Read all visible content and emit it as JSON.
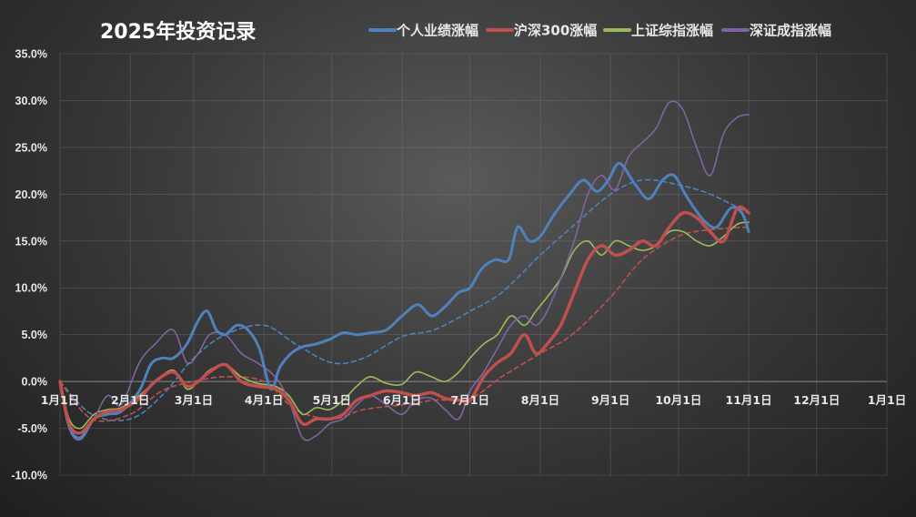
{
  "chart_data": {
    "type": "line",
    "title": "2025年投资记录",
    "ylim": [
      -0.1,
      0.35
    ],
    "yticks": [
      -0.1,
      -0.05,
      0.0,
      0.05,
      0.1,
      0.15,
      0.2,
      0.25,
      0.3,
      0.35
    ],
    "ytick_labels": [
      "-10.0%",
      "-5.0%",
      "0.0%",
      "5.0%",
      "10.0%",
      "15.0%",
      "20.0%",
      "25.0%",
      "30.0%",
      "35.0%"
    ],
    "xlim": [
      "2025-01-01",
      "2026-01-01"
    ],
    "xticks": [
      "2025-01-01",
      "2025-02-01",
      "2025-03-01",
      "2025-04-01",
      "2025-05-01",
      "2025-06-01",
      "2025-07-01",
      "2025-08-01",
      "2025-09-01",
      "2025-10-01",
      "2025-11-01",
      "2025-12-01",
      "2026-01-01"
    ],
    "xtick_labels": [
      "1月1日",
      "2月1日",
      "3月1日",
      "4月1日",
      "5月1日",
      "6月1日",
      "7月1日",
      "8月1日",
      "9月1日",
      "10月1日",
      "11月1日",
      "12月1日",
      "1月1日"
    ],
    "legend_position": "top",
    "grid": true,
    "series": [
      {
        "name": "个人业绩涨幅",
        "color": "#4f81bd",
        "width": 3,
        "x": [
          "2025-01-01",
          "2025-01-05",
          "2025-01-10",
          "2025-01-16",
          "2025-01-22",
          "2025-01-28",
          "2025-02-05",
          "2025-02-10",
          "2025-02-15",
          "2025-02-20",
          "2025-02-26",
          "2025-03-03",
          "2025-03-07",
          "2025-03-11",
          "2025-03-15",
          "2025-03-20",
          "2025-03-25",
          "2025-03-30",
          "2025-04-04",
          "2025-04-08",
          "2025-04-13",
          "2025-04-18",
          "2025-04-24",
          "2025-04-30",
          "2025-05-06",
          "2025-05-12",
          "2025-05-18",
          "2025-05-25",
          "2025-06-01",
          "2025-06-08",
          "2025-06-14",
          "2025-06-20",
          "2025-06-26",
          "2025-07-01",
          "2025-07-06",
          "2025-07-12",
          "2025-07-18",
          "2025-07-22",
          "2025-07-27",
          "2025-08-01",
          "2025-08-07",
          "2025-08-14",
          "2025-08-20",
          "2025-08-26",
          "2025-08-31",
          "2025-09-05",
          "2025-09-12",
          "2025-09-18",
          "2025-09-24",
          "2025-09-29",
          "2025-10-04",
          "2025-10-08",
          "2025-10-13",
          "2025-10-18",
          "2025-10-24",
          "2025-10-29",
          "2025-11-01"
        ],
        "y": [
          0.0,
          -0.048,
          -0.06,
          -0.04,
          -0.035,
          -0.032,
          -0.01,
          0.018,
          0.025,
          0.025,
          0.04,
          0.065,
          0.075,
          0.055,
          0.05,
          0.06,
          0.055,
          0.035,
          -0.008,
          0.015,
          0.03,
          0.037,
          0.04,
          0.045,
          0.052,
          0.05,
          0.052,
          0.055,
          0.07,
          0.082,
          0.07,
          0.08,
          0.095,
          0.1,
          0.12,
          0.13,
          0.13,
          0.165,
          0.15,
          0.155,
          0.178,
          0.2,
          0.215,
          0.203,
          0.215,
          0.233,
          0.21,
          0.195,
          0.215,
          0.22,
          0.2,
          0.185,
          0.17,
          0.165,
          0.185,
          0.18,
          0.16
        ]
      },
      {
        "name": "沪深300涨幅",
        "color": "#c0504d",
        "width": 3.5,
        "x": [
          "2025-01-01",
          "2025-01-05",
          "2025-01-10",
          "2025-01-16",
          "2025-01-22",
          "2025-01-28",
          "2025-02-05",
          "2025-02-12",
          "2025-02-20",
          "2025-02-26",
          "2025-03-03",
          "2025-03-08",
          "2025-03-15",
          "2025-03-22",
          "2025-03-29",
          "2025-04-06",
          "2025-04-12",
          "2025-04-18",
          "2025-04-24",
          "2025-04-30",
          "2025-05-06",
          "2025-05-12",
          "2025-05-18",
          "2025-05-25",
          "2025-06-01",
          "2025-06-07",
          "2025-06-14",
          "2025-06-20",
          "2025-06-26",
          "2025-07-01",
          "2025-07-07",
          "2025-07-13",
          "2025-07-19",
          "2025-07-25",
          "2025-07-30",
          "2025-08-04",
          "2025-08-10",
          "2025-08-16",
          "2025-08-22",
          "2025-08-28",
          "2025-09-03",
          "2025-09-09",
          "2025-09-15",
          "2025-09-21",
          "2025-09-27",
          "2025-10-03",
          "2025-10-09",
          "2025-10-15",
          "2025-10-21",
          "2025-10-27",
          "2025-11-01"
        ],
        "y": [
          0.0,
          -0.045,
          -0.055,
          -0.04,
          -0.032,
          -0.03,
          -0.018,
          0.0,
          0.01,
          -0.005,
          0.0,
          0.01,
          0.018,
          0.0,
          -0.005,
          -0.008,
          -0.02,
          -0.045,
          -0.04,
          -0.04,
          -0.035,
          -0.02,
          -0.015,
          -0.01,
          -0.012,
          -0.015,
          -0.012,
          -0.018,
          -0.02,
          -0.02,
          0.005,
          0.02,
          0.03,
          0.05,
          0.03,
          0.04,
          0.06,
          0.095,
          0.13,
          0.145,
          0.135,
          0.14,
          0.15,
          0.145,
          0.165,
          0.18,
          0.175,
          0.16,
          0.15,
          0.185,
          0.18
        ]
      },
      {
        "name": "上证综指涨幅",
        "color": "#9bbb59",
        "width": 1.6,
        "x": [
          "2025-01-01",
          "2025-01-05",
          "2025-01-10",
          "2025-01-16",
          "2025-01-22",
          "2025-01-28",
          "2025-02-05",
          "2025-02-12",
          "2025-02-20",
          "2025-02-26",
          "2025-03-03",
          "2025-03-08",
          "2025-03-15",
          "2025-03-22",
          "2025-03-29",
          "2025-04-06",
          "2025-04-12",
          "2025-04-18",
          "2025-04-24",
          "2025-04-30",
          "2025-05-06",
          "2025-05-12",
          "2025-05-18",
          "2025-05-25",
          "2025-06-01",
          "2025-06-07",
          "2025-06-14",
          "2025-06-20",
          "2025-06-26",
          "2025-07-01",
          "2025-07-07",
          "2025-07-13",
          "2025-07-19",
          "2025-07-25",
          "2025-07-30",
          "2025-08-04",
          "2025-08-10",
          "2025-08-16",
          "2025-08-22",
          "2025-08-28",
          "2025-09-03",
          "2025-09-09",
          "2025-09-15",
          "2025-09-21",
          "2025-09-27",
          "2025-10-03",
          "2025-10-09",
          "2025-10-15",
          "2025-10-21",
          "2025-10-27",
          "2025-11-01"
        ],
        "y": [
          0.0,
          -0.04,
          -0.05,
          -0.035,
          -0.03,
          -0.028,
          -0.015,
          0.0,
          0.012,
          -0.008,
          0.0,
          0.012,
          0.018,
          0.005,
          -0.002,
          -0.005,
          -0.015,
          -0.035,
          -0.028,
          -0.03,
          -0.02,
          -0.005,
          0.005,
          -0.002,
          -0.003,
          0.01,
          0.005,
          0.0,
          0.01,
          0.025,
          0.04,
          0.05,
          0.07,
          0.06,
          0.075,
          0.09,
          0.11,
          0.14,
          0.15,
          0.135,
          0.15,
          0.145,
          0.14,
          0.145,
          0.16,
          0.16,
          0.15,
          0.145,
          0.155,
          0.168,
          0.17
        ]
      },
      {
        "name": "深证成指涨幅",
        "color": "#8064a2",
        "width": 1.6,
        "x": [
          "2025-01-01",
          "2025-01-05",
          "2025-01-10",
          "2025-01-16",
          "2025-01-22",
          "2025-01-28",
          "2025-02-05",
          "2025-02-12",
          "2025-02-20",
          "2025-02-26",
          "2025-03-03",
          "2025-03-08",
          "2025-03-15",
          "2025-03-22",
          "2025-03-29",
          "2025-04-06",
          "2025-04-12",
          "2025-04-18",
          "2025-04-24",
          "2025-04-30",
          "2025-05-06",
          "2025-05-12",
          "2025-05-18",
          "2025-05-25",
          "2025-06-01",
          "2025-06-07",
          "2025-06-14",
          "2025-06-20",
          "2025-06-26",
          "2025-07-01",
          "2025-07-07",
          "2025-07-13",
          "2025-07-19",
          "2025-07-25",
          "2025-07-30",
          "2025-08-04",
          "2025-08-10",
          "2025-08-16",
          "2025-08-22",
          "2025-08-28",
          "2025-09-03",
          "2025-09-09",
          "2025-09-15",
          "2025-09-21",
          "2025-09-27",
          "2025-10-03",
          "2025-10-09",
          "2025-10-15",
          "2025-10-21",
          "2025-10-27",
          "2025-11-01"
        ],
        "y": [
          0.0,
          -0.05,
          -0.062,
          -0.04,
          -0.015,
          -0.025,
          0.02,
          0.04,
          0.055,
          0.02,
          0.03,
          0.05,
          0.05,
          0.03,
          0.02,
          0.005,
          -0.02,
          -0.06,
          -0.058,
          -0.045,
          -0.04,
          -0.025,
          -0.015,
          -0.025,
          -0.035,
          -0.02,
          -0.018,
          -0.03,
          -0.04,
          -0.01,
          0.01,
          0.035,
          0.06,
          0.07,
          0.06,
          0.075,
          0.11,
          0.15,
          0.2,
          0.22,
          0.205,
          0.24,
          0.255,
          0.27,
          0.298,
          0.29,
          0.25,
          0.22,
          0.265,
          0.282,
          0.285
        ]
      },
      {
        "name": "",
        "role": "trend",
        "color": "#4f81bd",
        "width": 1.6,
        "dashed": true,
        "x": [
          "2025-01-01",
          "2025-01-15",
          "2025-02-01",
          "2025-02-15",
          "2025-03-01",
          "2025-03-15",
          "2025-04-01",
          "2025-04-15",
          "2025-05-01",
          "2025-05-15",
          "2025-06-01",
          "2025-06-15",
          "2025-07-01",
          "2025-07-15",
          "2025-08-01",
          "2025-08-15",
          "2025-09-01",
          "2025-09-15",
          "2025-10-01",
          "2025-10-15",
          "2025-11-01"
        ],
        "y": [
          0.0,
          -0.035,
          -0.04,
          -0.015,
          0.025,
          0.05,
          0.06,
          0.04,
          0.02,
          0.025,
          0.048,
          0.055,
          0.075,
          0.095,
          0.135,
          0.165,
          0.2,
          0.215,
          0.21,
          0.2,
          0.18
        ]
      },
      {
        "name": "",
        "role": "trend",
        "color": "#c0504d",
        "width": 1.6,
        "dashed": true,
        "x": [
          "2025-01-01",
          "2025-01-15",
          "2025-02-01",
          "2025-02-15",
          "2025-03-01",
          "2025-03-15",
          "2025-04-01",
          "2025-04-15",
          "2025-05-01",
          "2025-05-15",
          "2025-06-01",
          "2025-06-15",
          "2025-07-01",
          "2025-07-15",
          "2025-08-01",
          "2025-08-15",
          "2025-09-01",
          "2025-09-15",
          "2025-10-01",
          "2025-10-15",
          "2025-11-01"
        ],
        "y": [
          0.0,
          -0.04,
          -0.035,
          -0.01,
          0.0,
          0.005,
          0.0,
          -0.03,
          -0.04,
          -0.03,
          -0.025,
          -0.02,
          -0.018,
          0.005,
          0.03,
          0.05,
          0.09,
          0.13,
          0.155,
          0.162,
          0.165
        ]
      }
    ]
  }
}
